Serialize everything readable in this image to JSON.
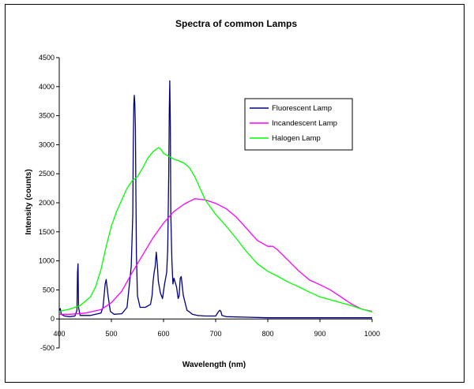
{
  "chart_data": {
    "type": "line",
    "title": "Spectra of common Lamps",
    "xlabel": "Wavelength (nm)",
    "ylabel": "Intensity (counts)",
    "xlim": [
      400,
      1000
    ],
    "ylim": [
      -500,
      4500
    ],
    "x_ticks": [
      400,
      500,
      600,
      700,
      800,
      900,
      1000
    ],
    "y_ticks": [
      -500,
      0,
      500,
      1000,
      1500,
      2000,
      2500,
      3000,
      3500,
      4000,
      4500
    ],
    "grid": false,
    "legend_position": "upper-right",
    "series": [
      {
        "name": "Fluorescent Lamp",
        "color": "#00007f",
        "x": [
          400,
          402,
          404,
          410,
          420,
          430,
          434,
          435,
          436,
          437,
          440,
          460,
          480,
          484,
          488,
          490,
          494,
          498,
          505,
          520,
          530,
          538,
          541,
          542,
          543,
          544,
          545,
          546,
          547,
          548,
          550,
          555,
          565,
          575,
          578,
          580,
          582,
          584,
          586,
          588,
          590,
          594,
          598,
          602,
          606,
          608,
          610,
          611,
          612,
          613,
          614,
          616,
          618,
          620,
          625,
          628,
          630,
          632,
          634,
          638,
          645,
          650,
          655,
          665,
          680,
          700,
          705,
          708,
          710,
          712,
          720,
          760,
          800,
          900,
          1000
        ],
        "y": [
          120,
          180,
          80,
          50,
          40,
          50,
          150,
          800,
          950,
          200,
          60,
          60,
          100,
          200,
          600,
          680,
          380,
          130,
          80,
          90,
          200,
          900,
          1800,
          3000,
          3700,
          3850,
          3700,
          3300,
          2200,
          1100,
          400,
          200,
          200,
          250,
          400,
          650,
          800,
          900,
          1150,
          950,
          650,
          450,
          350,
          600,
          800,
          1200,
          2500,
          3600,
          4100,
          3400,
          1800,
          1000,
          600,
          700,
          550,
          350,
          400,
          700,
          730,
          400,
          150,
          120,
          80,
          60,
          50,
          50,
          120,
          150,
          130,
          60,
          40,
          30,
          20,
          20,
          20
        ]
      },
      {
        "name": "Incandescent Lamp",
        "color": "#ff00ff",
        "x": [
          400,
          420,
          450,
          480,
          500,
          520,
          540,
          560,
          580,
          600,
          620,
          640,
          660,
          680,
          700,
          720,
          740,
          760,
          780,
          800,
          810,
          820,
          840,
          860,
          880,
          900,
          920,
          940,
          960,
          980,
          1000
        ],
        "y": [
          80,
          80,
          100,
          160,
          280,
          480,
          800,
          1100,
          1400,
          1650,
          1850,
          1980,
          2070,
          2050,
          1990,
          1900,
          1750,
          1550,
          1350,
          1250,
          1250,
          1180,
          1000,
          820,
          670,
          590,
          500,
          380,
          260,
          170,
          130
        ]
      },
      {
        "name": "Halogen Lamp",
        "color": "#00ff00",
        "x": [
          400,
          420,
          440,
          460,
          470,
          480,
          490,
          500,
          510,
          520,
          530,
          540,
          550,
          560,
          570,
          580,
          590,
          595,
          600,
          610,
          620,
          630,
          640,
          650,
          660,
          670,
          680,
          700,
          720,
          740,
          760,
          780,
          800,
          820,
          840,
          860,
          880,
          900,
          920,
          940,
          960,
          980,
          1000
        ],
        "y": [
          130,
          170,
          230,
          380,
          560,
          850,
          1250,
          1600,
          1850,
          2050,
          2250,
          2380,
          2450,
          2600,
          2770,
          2880,
          2950,
          2920,
          2850,
          2800,
          2750,
          2720,
          2680,
          2600,
          2450,
          2250,
          2050,
          1800,
          1600,
          1380,
          1150,
          950,
          820,
          730,
          630,
          550,
          460,
          380,
          330,
          280,
          230,
          170,
          120
        ]
      }
    ]
  }
}
